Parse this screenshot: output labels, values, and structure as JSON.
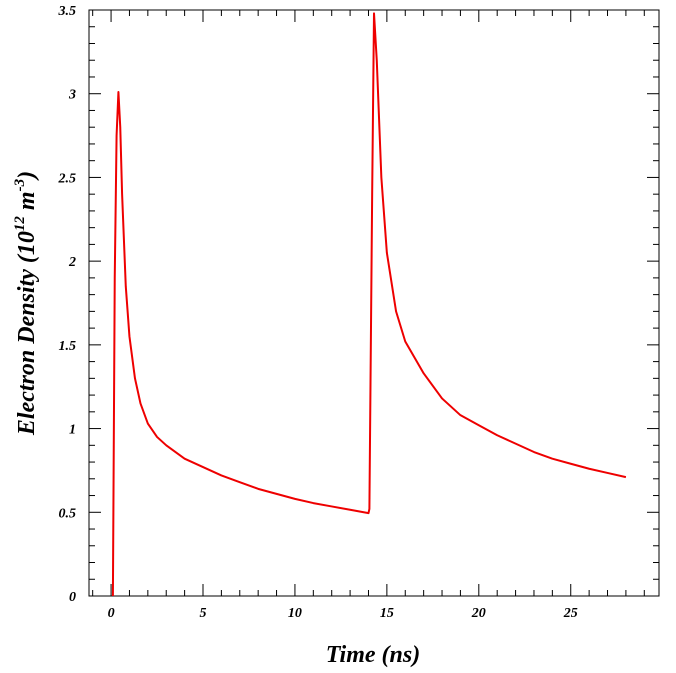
{
  "chart_data": {
    "type": "line",
    "title": "",
    "xlabel": "Time (ns)",
    "ylabel": {
      "main": "Electron Density (10",
      "exp1": "12",
      "unit": " m",
      "exp2": "-3",
      "close": ")"
    },
    "xlim": [
      -1.2,
      29.8
    ],
    "ylim": [
      0,
      3.5
    ],
    "xticks": [
      0,
      5,
      10,
      15,
      20,
      25
    ],
    "yticks": [
      0,
      0.5,
      1,
      1.5,
      2,
      2.5,
      3,
      3.5
    ],
    "xtick_labels": [
      "0",
      "5",
      "10",
      "15",
      "20",
      "25"
    ],
    "ytick_labels": [
      "0",
      "0.5",
      "1",
      "1.5",
      "2",
      "2.5",
      "3",
      "3.5"
    ],
    "grid": false,
    "series": [
      {
        "color": "#ee0000",
        "x": [
          0.1,
          0.2,
          0.3,
          0.4,
          0.5,
          0.6,
          0.8,
          1.0,
          1.3,
          1.6,
          2.0,
          2.5,
          3.0,
          4.0,
          5.0,
          6.0,
          7.0,
          8.0,
          9.0,
          10.0,
          11.0,
          12.0,
          13.0,
          14.0,
          14.05,
          14.2,
          14.3,
          14.45,
          14.7,
          15.0,
          15.5,
          16.0,
          17.0,
          18.0,
          19.0,
          20.0,
          21.0,
          22.0,
          23.0,
          24.0,
          25.0,
          26.0,
          27.0,
          28.0
        ],
        "y": [
          0.0,
          1.9,
          2.75,
          3.01,
          2.8,
          2.4,
          1.85,
          1.55,
          1.3,
          1.15,
          1.03,
          0.95,
          0.9,
          0.82,
          0.77,
          0.72,
          0.68,
          0.64,
          0.61,
          0.58,
          0.555,
          0.535,
          0.515,
          0.495,
          0.52,
          2.4,
          3.48,
          3.2,
          2.5,
          2.05,
          1.7,
          1.52,
          1.33,
          1.18,
          1.08,
          1.02,
          0.96,
          0.91,
          0.86,
          0.82,
          0.79,
          0.76,
          0.735,
          0.71
        ]
      }
    ]
  }
}
